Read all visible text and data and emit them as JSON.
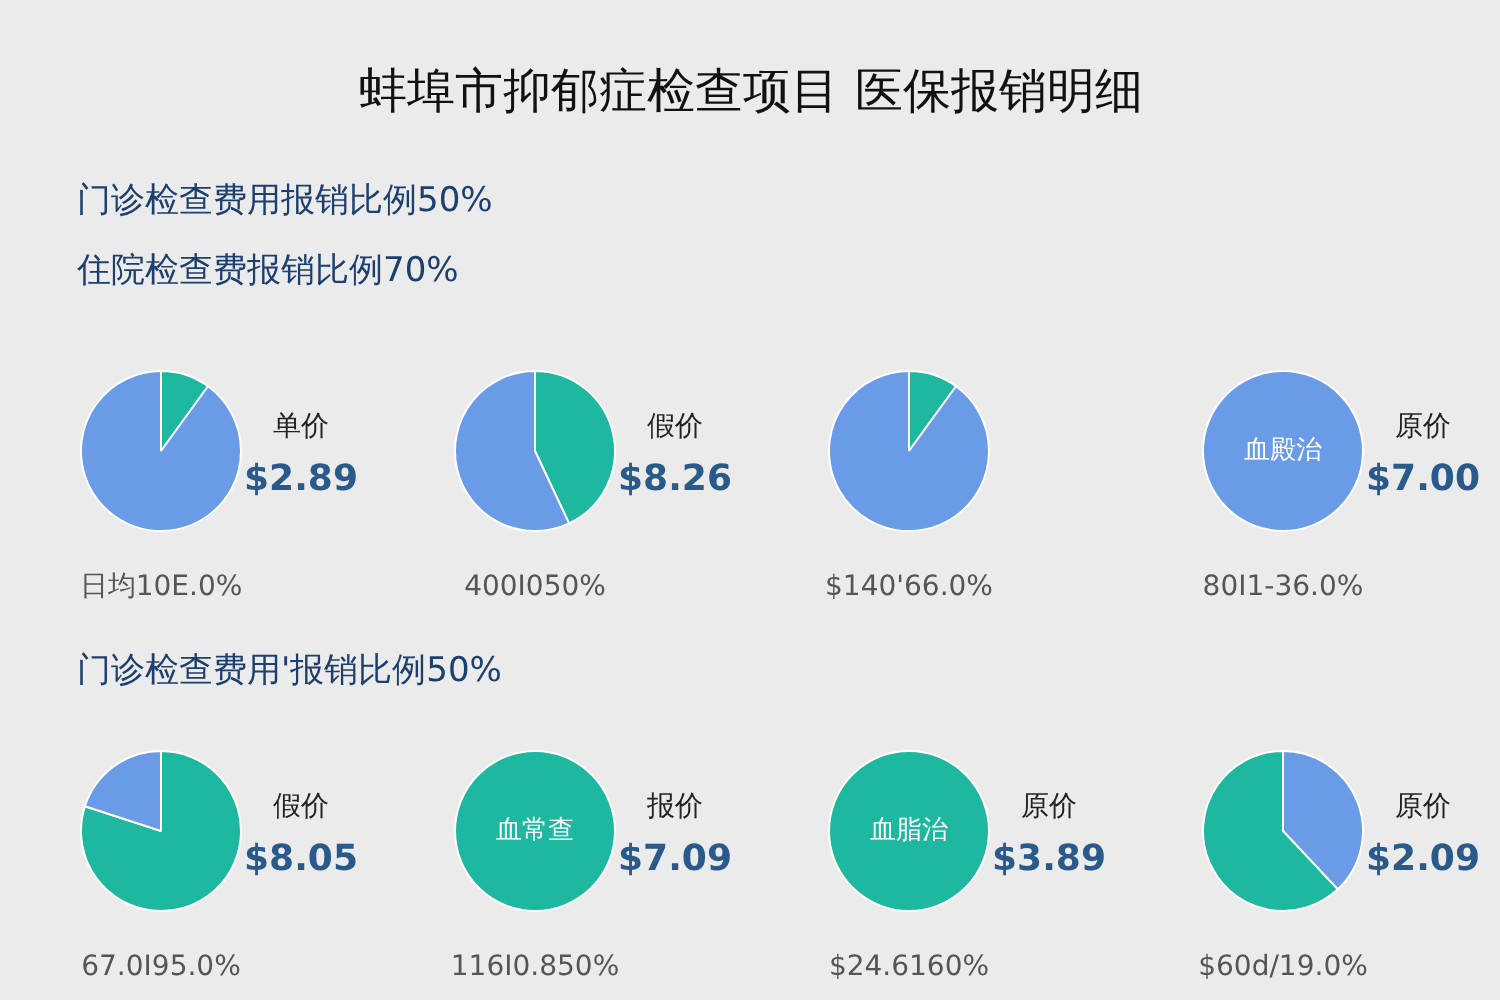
{
  "chart_data": [
    {
      "type": "other",
      "title": "蚌埠市抑郁症检查项目 医保报销明细",
      "annotations": [
        "门诊检查费用报销比例50%",
        "住院检查费报销比例70%"
      ]
    },
    {
      "type": "pie",
      "categories": [
        null,
        null
      ],
      "values": [
        10,
        90
      ],
      "colors": [
        "#1db89f",
        "#6a9be6"
      ],
      "title": "单价",
      "subtitle": "$2.89",
      "xlabel": "日均10E.0%"
    },
    {
      "type": "pie",
      "categories": [
        null,
        null
      ],
      "values": [
        43,
        57
      ],
      "colors": [
        "#1db89f",
        "#6a9be6"
      ],
      "title": "假价",
      "subtitle": "$8.26",
      "xlabel": "400I050%"
    },
    {
      "type": "pie",
      "categories": [
        null,
        null
      ],
      "values": [
        10,
        90
      ],
      "colors": [
        "#1db89f",
        "#6a9be6"
      ],
      "xlabel": "$140'66.0%"
    },
    {
      "type": "pie",
      "categories": [
        null
      ],
      "values": [
        100
      ],
      "colors": [
        "#6a9be6"
      ],
      "title": "原价",
      "subtitle": "$7.00",
      "xlabel": "80I1-36.0%",
      "annotations": [
        "血殿治"
      ]
    },
    {
      "type": "other",
      "annotations": [
        "门诊检查费用'报销比例50%"
      ]
    },
    {
      "type": "pie",
      "categories": [
        null,
        null
      ],
      "values": [
        80,
        20
      ],
      "colors": [
        "#1db89f",
        "#6a9be6"
      ],
      "title": "假价",
      "subtitle": "$8.05",
      "xlabel": "67.0I95.0%"
    },
    {
      "type": "pie",
      "categories": [
        null
      ],
      "values": [
        100
      ],
      "colors": [
        "#1db89f"
      ],
      "title": "报价",
      "subtitle": "$7.09",
      "xlabel": "116I0.850%",
      "annotations": [
        "血常查"
      ]
    },
    {
      "type": "pie",
      "categories": [
        null
      ],
      "values": [
        100
      ],
      "colors": [
        "#1db89f"
      ],
      "title": "原价",
      "subtitle": "$3.89",
      "xlabel": "$24.6160%",
      "annotations": [
        "血脂治"
      ]
    },
    {
      "type": "pie",
      "categories": [
        null,
        null
      ],
      "values": [
        38,
        62
      ],
      "colors": [
        "#6a9be6",
        "#1db89f"
      ],
      "title": "原价",
      "subtitle": "$2.09",
      "xlabel": "$60d/19.0%"
    }
  ]
}
